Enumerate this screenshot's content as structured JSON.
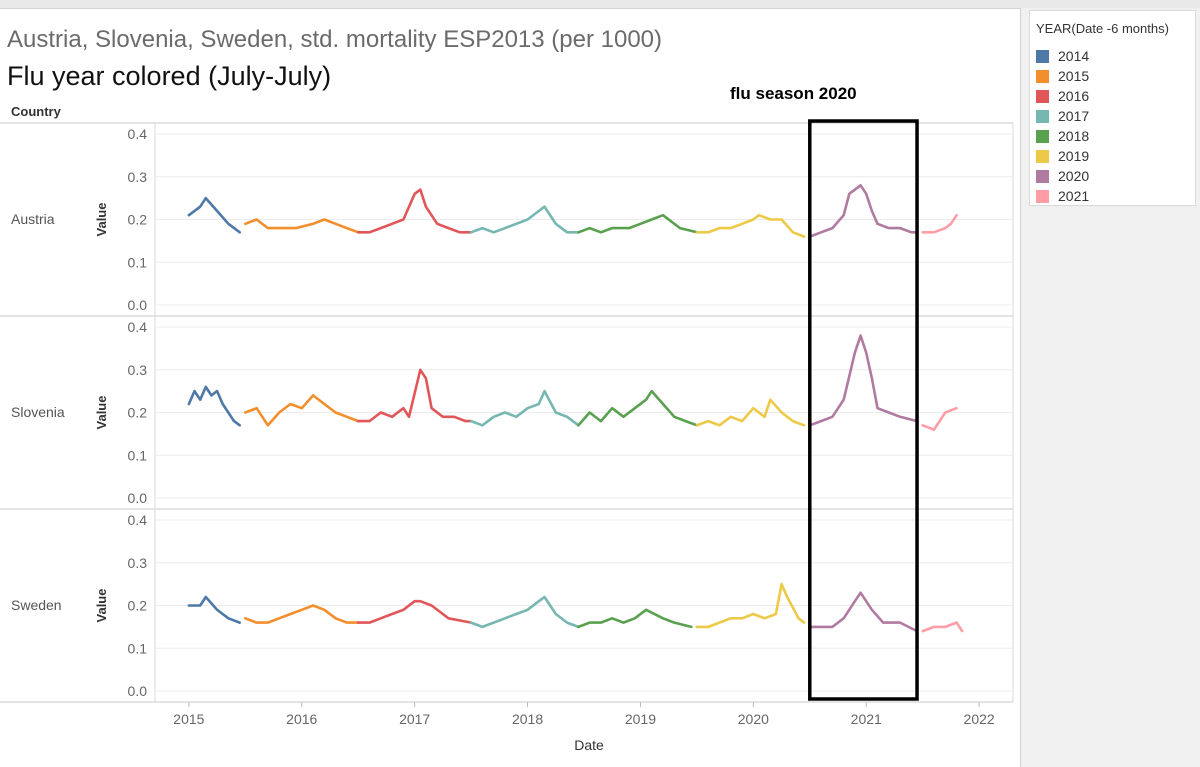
{
  "title": "Austria, Slovenia, Sweden, std. mortality ESP2013  (per 1000)",
  "subtitle": "Flu year colored (July-July)",
  "row_header": "Country",
  "annotation": "flu season 2020",
  "legend": {
    "title": "YEAR(Date -6 months)",
    "items": [
      {
        "label": "2014",
        "color": "#4e79a7"
      },
      {
        "label": "2015",
        "color": "#f28e2b"
      },
      {
        "label": "2016",
        "color": "#e15759"
      },
      {
        "label": "2017",
        "color": "#76b7b2"
      },
      {
        "label": "2018",
        "color": "#59a14f"
      },
      {
        "label": "2019",
        "color": "#edc948"
      },
      {
        "label": "2020",
        "color": "#b07aa1"
      },
      {
        "label": "2021",
        "color": "#ff9da7"
      }
    ]
  },
  "chart_data": {
    "type": "line",
    "xlabel": "Date",
    "ylabel": "Value",
    "x_ticks": [
      "2015",
      "2016",
      "2017",
      "2018",
      "2019",
      "2020",
      "2021",
      "2022"
    ],
    "y_ticks": [
      "0.0",
      "0.1",
      "0.2",
      "0.3",
      "0.4"
    ],
    "ylim": [
      0,
      0.4
    ],
    "xlim": [
      2014.7,
      2022.3
    ],
    "grid": true,
    "highlight_box": {
      "x_start": 2020.5,
      "x_end": 2021.45,
      "label": "flu season 2020"
    },
    "panels": [
      {
        "name": "Austria",
        "series": [
          {
            "name": "2014",
            "x": [
              2015.0,
              2015.1,
              2015.15,
              2015.25,
              2015.35,
              2015.45
            ],
            "y": [
              0.21,
              0.23,
              0.25,
              0.22,
              0.19,
              0.17
            ]
          },
          {
            "name": "2015",
            "x": [
              2015.5,
              2015.6,
              2015.7,
              2015.8,
              2015.95,
              2016.1,
              2016.2,
              2016.3,
              2016.4,
              2016.5
            ],
            "y": [
              0.19,
              0.2,
              0.18,
              0.18,
              0.18,
              0.19,
              0.2,
              0.19,
              0.18,
              0.17
            ]
          },
          {
            "name": "2016",
            "x": [
              2016.5,
              2016.6,
              2016.7,
              2016.8,
              2016.9,
              2017.0,
              2017.05,
              2017.1,
              2017.2,
              2017.3,
              2017.4,
              2017.5
            ],
            "y": [
              0.17,
              0.17,
              0.18,
              0.19,
              0.2,
              0.26,
              0.27,
              0.23,
              0.19,
              0.18,
              0.17,
              0.17
            ]
          },
          {
            "name": "2017",
            "x": [
              2017.5,
              2017.6,
              2017.7,
              2017.8,
              2017.9,
              2018.0,
              2018.1,
              2018.15,
              2018.25,
              2018.35,
              2018.45
            ],
            "y": [
              0.17,
              0.18,
              0.17,
              0.18,
              0.19,
              0.2,
              0.22,
              0.23,
              0.19,
              0.17,
              0.17
            ]
          },
          {
            "name": "2018",
            "x": [
              2018.45,
              2018.55,
              2018.65,
              2018.75,
              2018.9,
              2019.0,
              2019.1,
              2019.2,
              2019.35,
              2019.5
            ],
            "y": [
              0.17,
              0.18,
              0.17,
              0.18,
              0.18,
              0.19,
              0.2,
              0.21,
              0.18,
              0.17
            ]
          },
          {
            "name": "2019",
            "x": [
              2019.5,
              2019.6,
              2019.7,
              2019.8,
              2019.9,
              2020.0,
              2020.05,
              2020.15,
              2020.25,
              2020.35,
              2020.45
            ],
            "y": [
              0.17,
              0.17,
              0.18,
              0.18,
              0.19,
              0.2,
              0.21,
              0.2,
              0.2,
              0.17,
              0.16
            ]
          },
          {
            "name": "2020",
            "x": [
              2020.5,
              2020.6,
              2020.7,
              2020.8,
              2020.85,
              2020.95,
              2021.0,
              2021.05,
              2021.1,
              2021.2,
              2021.3,
              2021.4,
              2021.45
            ],
            "y": [
              0.16,
              0.17,
              0.18,
              0.21,
              0.26,
              0.28,
              0.26,
              0.22,
              0.19,
              0.18,
              0.18,
              0.17,
              0.17
            ]
          },
          {
            "name": "2021",
            "x": [
              2021.5,
              2021.6,
              2021.7,
              2021.75,
              2021.8
            ],
            "y": [
              0.17,
              0.17,
              0.18,
              0.19,
              0.21
            ]
          }
        ]
      },
      {
        "name": "Slovenia",
        "series": [
          {
            "name": "2014",
            "x": [
              2015.0,
              2015.05,
              2015.1,
              2015.15,
              2015.2,
              2015.25,
              2015.3,
              2015.4,
              2015.45
            ],
            "y": [
              0.22,
              0.25,
              0.23,
              0.26,
              0.24,
              0.25,
              0.22,
              0.18,
              0.17
            ]
          },
          {
            "name": "2015",
            "x": [
              2015.5,
              2015.6,
              2015.7,
              2015.8,
              2015.9,
              2016.0,
              2016.1,
              2016.2,
              2016.3,
              2016.4,
              2016.5
            ],
            "y": [
              0.2,
              0.21,
              0.17,
              0.2,
              0.22,
              0.21,
              0.24,
              0.22,
              0.2,
              0.19,
              0.18
            ]
          },
          {
            "name": "2016",
            "x": [
              2016.5,
              2016.6,
              2016.7,
              2016.8,
              2016.9,
              2016.95,
              2017.05,
              2017.1,
              2017.15,
              2017.25,
              2017.35,
              2017.45,
              2017.5
            ],
            "y": [
              0.18,
              0.18,
              0.2,
              0.19,
              0.21,
              0.19,
              0.3,
              0.28,
              0.21,
              0.19,
              0.19,
              0.18,
              0.18
            ]
          },
          {
            "name": "2017",
            "x": [
              2017.5,
              2017.6,
              2017.7,
              2017.8,
              2017.9,
              2018.0,
              2018.1,
              2018.15,
              2018.25,
              2018.35,
              2018.45
            ],
            "y": [
              0.18,
              0.17,
              0.19,
              0.2,
              0.19,
              0.21,
              0.22,
              0.25,
              0.2,
              0.19,
              0.17
            ]
          },
          {
            "name": "2018",
            "x": [
              2018.45,
              2018.55,
              2018.65,
              2018.75,
              2018.85,
              2018.95,
              2019.05,
              2019.1,
              2019.2,
              2019.3,
              2019.4,
              2019.5
            ],
            "y": [
              0.17,
              0.2,
              0.18,
              0.21,
              0.19,
              0.21,
              0.23,
              0.25,
              0.22,
              0.19,
              0.18,
              0.17
            ]
          },
          {
            "name": "2019",
            "x": [
              2019.5,
              2019.6,
              2019.7,
              2019.8,
              2019.9,
              2020.0,
              2020.1,
              2020.15,
              2020.25,
              2020.35,
              2020.45
            ],
            "y": [
              0.17,
              0.18,
              0.17,
              0.19,
              0.18,
              0.21,
              0.19,
              0.23,
              0.2,
              0.18,
              0.17
            ]
          },
          {
            "name": "2020",
            "x": [
              2020.5,
              2020.6,
              2020.7,
              2020.8,
              2020.9,
              2020.95,
              2021.0,
              2021.05,
              2021.1,
              2021.2,
              2021.3,
              2021.45
            ],
            "y": [
              0.17,
              0.18,
              0.19,
              0.23,
              0.34,
              0.38,
              0.34,
              0.28,
              0.21,
              0.2,
              0.19,
              0.18
            ]
          },
          {
            "name": "2021",
            "x": [
              2021.5,
              2021.6,
              2021.65,
              2021.7,
              2021.8
            ],
            "y": [
              0.17,
              0.16,
              0.18,
              0.2,
              0.21
            ]
          }
        ]
      },
      {
        "name": "Sweden",
        "series": [
          {
            "name": "2014",
            "x": [
              2015.0,
              2015.1,
              2015.15,
              2015.25,
              2015.35,
              2015.45
            ],
            "y": [
              0.2,
              0.2,
              0.22,
              0.19,
              0.17,
              0.16
            ]
          },
          {
            "name": "2015",
            "x": [
              2015.5,
              2015.6,
              2015.7,
              2015.8,
              2015.9,
              2016.0,
              2016.1,
              2016.2,
              2016.3,
              2016.4,
              2016.5
            ],
            "y": [
              0.17,
              0.16,
              0.16,
              0.17,
              0.18,
              0.19,
              0.2,
              0.19,
              0.17,
              0.16,
              0.16
            ]
          },
          {
            "name": "2016",
            "x": [
              2016.5,
              2016.6,
              2016.7,
              2016.8,
              2016.9,
              2017.0,
              2017.05,
              2017.15,
              2017.3,
              2017.5
            ],
            "y": [
              0.16,
              0.16,
              0.17,
              0.18,
              0.19,
              0.21,
              0.21,
              0.2,
              0.17,
              0.16
            ]
          },
          {
            "name": "2017",
            "x": [
              2017.5,
              2017.6,
              2017.7,
              2017.8,
              2017.9,
              2018.0,
              2018.1,
              2018.15,
              2018.25,
              2018.35,
              2018.45
            ],
            "y": [
              0.16,
              0.15,
              0.16,
              0.17,
              0.18,
              0.19,
              0.21,
              0.22,
              0.18,
              0.16,
              0.15
            ]
          },
          {
            "name": "2018",
            "x": [
              2018.45,
              2018.55,
              2018.65,
              2018.75,
              2018.85,
              2018.95,
              2019.05,
              2019.2,
              2019.3,
              2019.45
            ],
            "y": [
              0.15,
              0.16,
              0.16,
              0.17,
              0.16,
              0.17,
              0.19,
              0.17,
              0.16,
              0.15
            ]
          },
          {
            "name": "2019",
            "x": [
              2019.5,
              2019.6,
              2019.7,
              2019.8,
              2019.9,
              2020.0,
              2020.1,
              2020.2,
              2020.25,
              2020.3,
              2020.4,
              2020.45
            ],
            "y": [
              0.15,
              0.15,
              0.16,
              0.17,
              0.17,
              0.18,
              0.17,
              0.18,
              0.25,
              0.22,
              0.17,
              0.16
            ]
          },
          {
            "name": "2020",
            "x": [
              2020.5,
              2020.6,
              2020.7,
              2020.8,
              2020.9,
              2020.95,
              2021.05,
              2021.15,
              2021.3,
              2021.45
            ],
            "y": [
              0.15,
              0.15,
              0.15,
              0.17,
              0.21,
              0.23,
              0.19,
              0.16,
              0.16,
              0.14
            ]
          },
          {
            "name": "2021",
            "x": [
              2021.5,
              2021.6,
              2021.7,
              2021.8,
              2021.85
            ],
            "y": [
              0.14,
              0.15,
              0.15,
              0.16,
              0.14
            ]
          }
        ]
      }
    ]
  }
}
